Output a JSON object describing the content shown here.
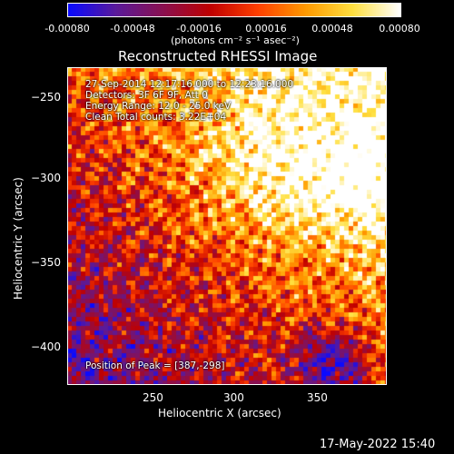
{
  "colorbar": {
    "ticks": [
      "-0.00080",
      "-0.00048",
      "-0.00016",
      "0.00016",
      "0.00048",
      "0.00080"
    ],
    "unit_label": "(photons cm⁻² s⁻¹ asec⁻²)",
    "min": -0.0008,
    "max": 0.0008
  },
  "plot": {
    "title": "Reconstructed RHESSI Image",
    "info_lines": [
      "27-Sep-2014 12:17:16.000 to 12:23:16.000",
      "Detectors: 3F 6F 9F, Att 0",
      "Energy Range: 12.0 - 25.0 keV",
      "Clean     Total counts: 3.22E+04"
    ],
    "peak_label": "Position of Peak = [387,-298]",
    "xlabel": "Heliocentric X (arcsec)",
    "ylabel": "Heliocentric Y (arcsec)",
    "x_ticks": [
      "250",
      "300",
      "350"
    ],
    "y_ticks": [
      "−250",
      "−300",
      "−350",
      "−400"
    ]
  },
  "footer": {
    "timestamp": "17-May-2022 15:40"
  },
  "chart_data": {
    "type": "heatmap",
    "title": "Reconstructed RHESSI Image",
    "xlabel": "Heliocentric X (arcsec)",
    "ylabel": "Heliocentric Y (arcsec)",
    "xlim": [
      203,
      390
    ],
    "ylim": [
      -425,
      -237
    ],
    "value_range": [
      -0.0008,
      0.0008
    ],
    "peak": [
      387,
      -298
    ],
    "colormap": [
      "#0a0aff",
      "#5a1a9a",
      "#8a1050",
      "#c00000",
      "#ff4000",
      "#ff9a00",
      "#ffe040",
      "#ffffff"
    ]
  }
}
